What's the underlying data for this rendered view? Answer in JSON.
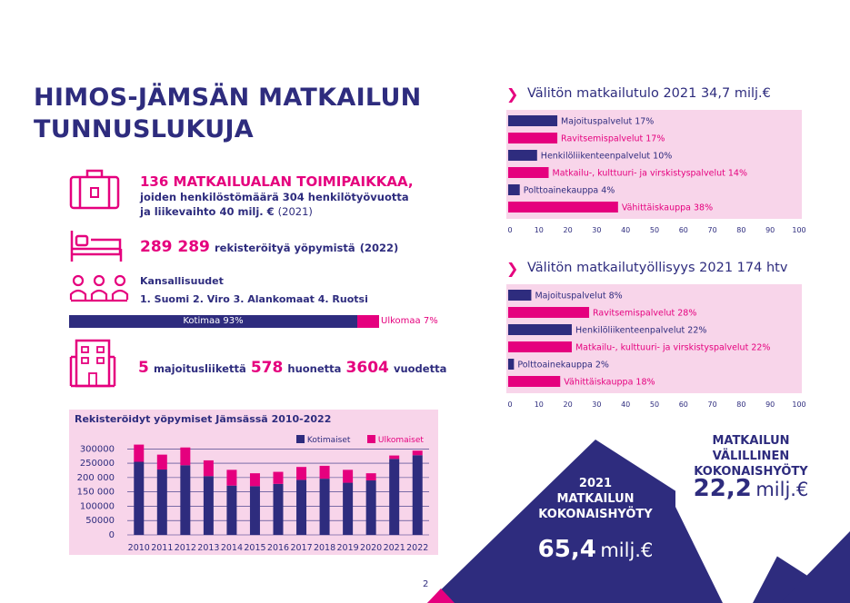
{
  "title_line1": "HIMOS-JÄMSÄN MATKAILUN",
  "title_line2": "TUNNUSLUKUJA",
  "stats": {
    "businesses_bold": "136 MATKAILUALAN TOIMIPAIKKAA,",
    "businesses_line2": "joiden henkilöstömäärä 304 henkilötyövuotta",
    "businesses_line3": "ja liikevaihto 40 milj. €",
    "businesses_year": "(2021)",
    "nights_number": "289 289",
    "nights_text": "rekisteröityä yöpymistä",
    "nights_year": "(2022)",
    "nationalities_title": "Kansallisuudet",
    "nationalities_list": "1. Suomi 2. Viro 3. Alankomaat 4. Ruotsi",
    "domestic_label": "Kotimaa 93%",
    "foreign_label": "Ulkomaa 7%",
    "domestic_share": 0.93,
    "acc_count": "5",
    "acc_text": "majoitusliikettä",
    "rooms_count": "578",
    "rooms_text": "huonetta",
    "beds_count": "3604",
    "beds_text": "vuodetta"
  },
  "income_title": "Välitön matkailutulo 2021 34,7 milj.€",
  "employment_title": "Välitön matkailutyöllisyys 2021 174 htv",
  "axis_ticks": [
    "0",
    "10",
    "20",
    "30",
    "40",
    "50",
    "60",
    "70",
    "80",
    "90",
    "100"
  ],
  "chart_data": [
    {
      "type": "bar",
      "orientation": "horizontal",
      "title": "Välitön matkailutulo 2021 34,7 milj.€",
      "categories": [
        "Majoituspalvelut 17%",
        "Ravitsemispalvelut 17%",
        "Henkilöliikenteenpalvelut 10%",
        "Matkailu-, kulttuuri- ja virskistyspalvelut 14%",
        "Polttoainekauppa 4%",
        "Vähittäiskauppa 38%"
      ],
      "values": [
        17,
        17,
        10,
        14,
        4,
        38
      ],
      "colors": [
        "#2e2c7e",
        "#e5007e",
        "#2e2c7e",
        "#e5007e",
        "#2e2c7e",
        "#e5007e"
      ],
      "xlim": [
        0,
        100
      ]
    },
    {
      "type": "bar",
      "orientation": "horizontal",
      "title": "Välitön matkailutyöllisyys 2021 174 htv",
      "categories": [
        "Majoituspalvelut 8%",
        "Ravitsemispalvelut 28%",
        "Henkilöliikenteenpalvelut 22%",
        "Matkailu-, kulttuuri- ja virskistyspalvelut 22%",
        "Polttoainekauppa 2%",
        "Vähittäiskauppa 18%"
      ],
      "values": [
        8,
        28,
        22,
        22,
        2,
        18
      ],
      "colors": [
        "#2e2c7e",
        "#e5007e",
        "#2e2c7e",
        "#e5007e",
        "#2e2c7e",
        "#e5007e"
      ],
      "xlim": [
        0,
        100
      ]
    },
    {
      "type": "bar",
      "stacked": true,
      "title": "Rekisteröidyt yöpymiset Jämsässä 2010-2022",
      "categories": [
        "2010",
        "2011",
        "2012",
        "2013",
        "2014",
        "2015",
        "2016",
        "2017",
        "2018",
        "2019",
        "2020",
        "2021",
        "2022"
      ],
      "series": [
        {
          "name": "Kotimaiset",
          "color": "#2e2c7e",
          "values": [
            255000,
            228000,
            243000,
            205000,
            172000,
            170000,
            178000,
            192000,
            196000,
            182000,
            190000,
            265000,
            278000
          ]
        },
        {
          "name": "Ulkomaiset",
          "color": "#e5007e",
          "values": [
            60000,
            52000,
            62000,
            55000,
            55000,
            45000,
            42000,
            45000,
            45000,
            45000,
            25000,
            12000,
            16000
          ]
        }
      ],
      "yticks": [
        "300000",
        "250000",
        "200 000",
        "150 000",
        "100000",
        "50000",
        "0"
      ],
      "ylim": [
        0,
        320000
      ]
    }
  ],
  "stacked_title": "Rekisteröidyt yöpymiset Jämsässä 2010-2022",
  "legend_domestic": "Kotimaiset",
  "legend_foreign": "Ulkomaiset",
  "indirect": {
    "line1": "MATKAILUN",
    "line2": "VÄLILLINEN",
    "line3": "KOKONAISHYÖTY",
    "value": "22,2",
    "unit": "milj.€"
  },
  "total": {
    "line1": "2021",
    "line2": "MATKAILUN",
    "line3": "KOKONAISHYÖTY",
    "value": "65,4",
    "unit": "milj.€"
  },
  "page_number": "2",
  "colors": {
    "navy": "#2e2c7e",
    "pink": "#e5007e",
    "light_pink": "#f8d5ea"
  }
}
